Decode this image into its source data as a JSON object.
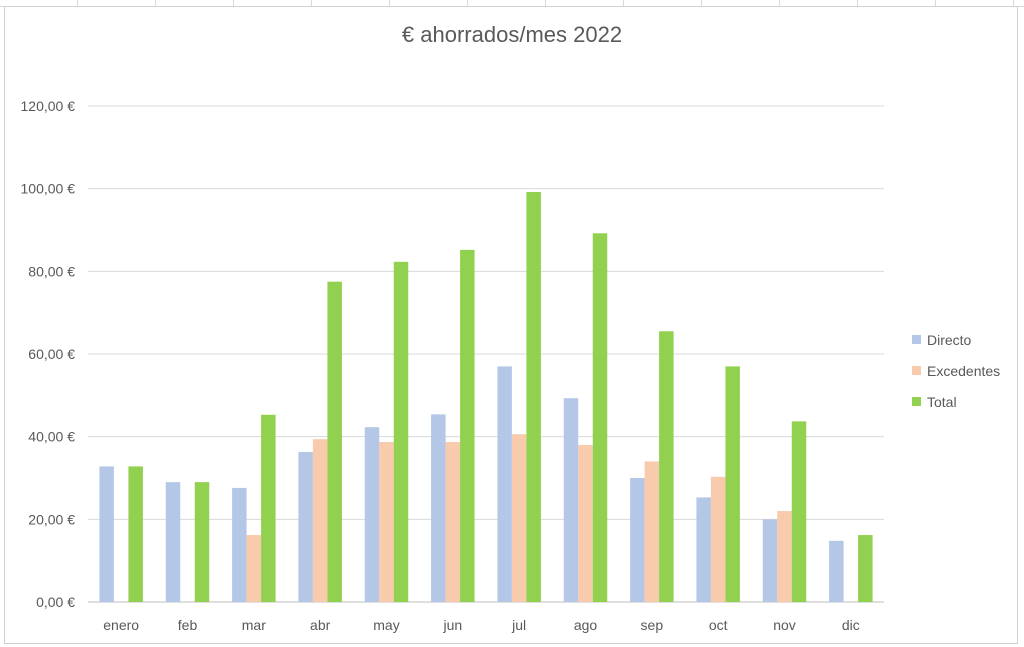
{
  "chart_data": {
    "type": "bar",
    "title": "€ ahorrados/mes 2022",
    "categories": [
      "enero",
      "feb",
      "mar",
      "abr",
      "may",
      "jun",
      "jul",
      "ago",
      "sep",
      "oct",
      "nov",
      "dic"
    ],
    "series": [
      {
        "name": "Directo",
        "color": "#b4c7e7",
        "values": [
          32.8,
          29.0,
          27.6,
          36.3,
          42.3,
          45.4,
          57.0,
          49.3,
          30.0,
          25.3,
          20.0,
          14.8
        ]
      },
      {
        "name": "Excedentes",
        "color": "#f8cbad",
        "values": [
          0,
          0,
          16.2,
          39.4,
          38.7,
          38.7,
          40.6,
          38.0,
          34.0,
          30.3,
          22.0,
          0
        ]
      },
      {
        "name": "Total",
        "color": "#92d050",
        "values": [
          32.8,
          29.0,
          45.3,
          77.5,
          82.3,
          85.2,
          99.2,
          89.2,
          65.5,
          57.0,
          43.7,
          16.2
        ]
      }
    ],
    "yticks": [
      "0,00 €",
      "20,00 €",
      "40,00 €",
      "60,00 €",
      "80,00 €",
      "100,00 €",
      "120,00 €"
    ],
    "ylim": [
      0,
      120
    ],
    "ystep": 20,
    "grid": true,
    "legend_position": "right"
  }
}
